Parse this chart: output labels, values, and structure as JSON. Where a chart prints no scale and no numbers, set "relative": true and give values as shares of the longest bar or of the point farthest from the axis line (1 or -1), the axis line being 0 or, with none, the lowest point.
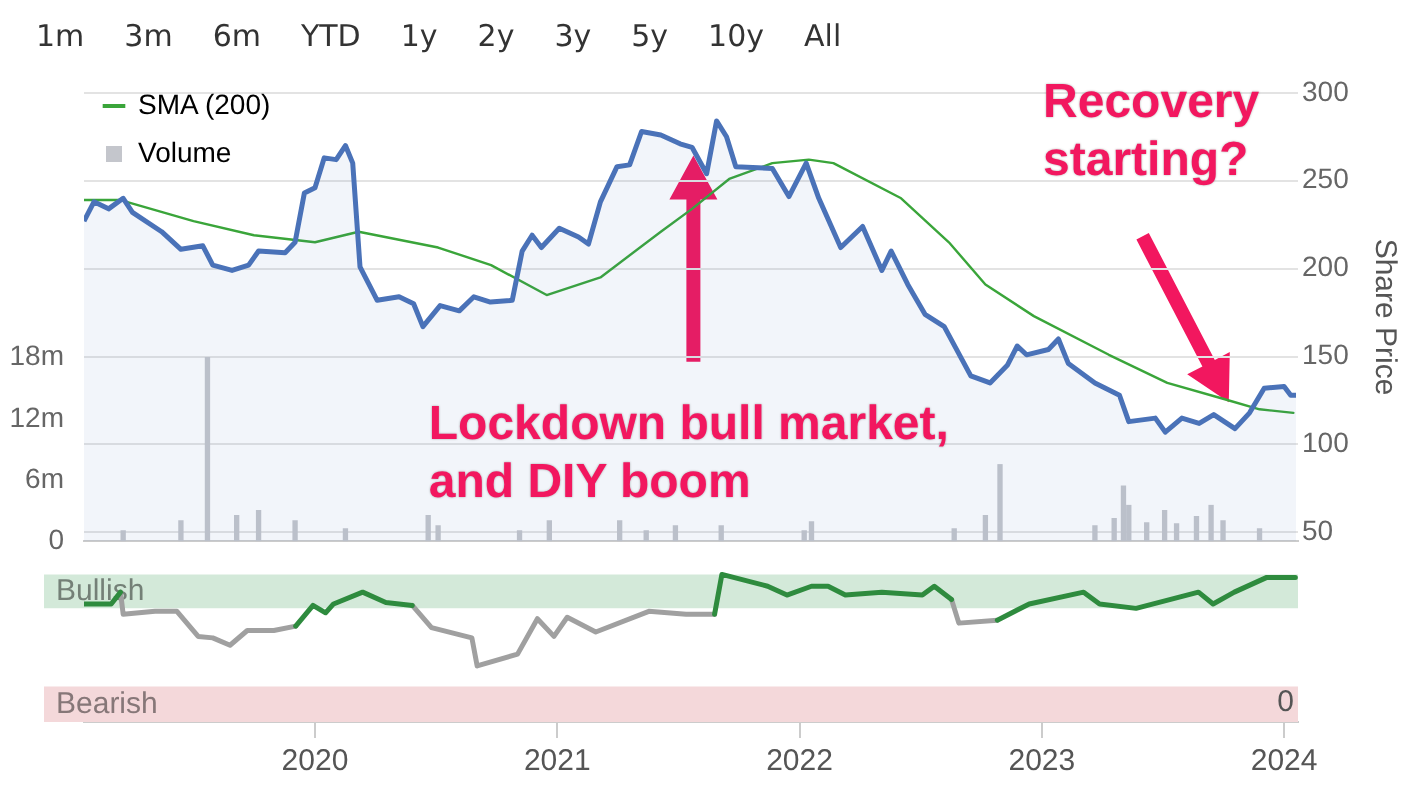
{
  "chart_data": [
    {
      "type": "other",
      "annotations": [
        "1m",
        "3m",
        "6m",
        "YTD",
        "1y",
        "2y",
        "3y",
        "5y",
        "10y",
        "All"
      ]
    },
    {
      "type": "line",
      "ylabel": "Share Price",
      "xlim": [
        "2019-01-18",
        "2024-01-22"
      ],
      "xticks": [
        "2020",
        "2021",
        "2022",
        "2023",
        "2024"
      ],
      "ylim": [
        45,
        300
      ],
      "yticks": [
        50,
        100,
        150,
        200,
        250,
        300
      ],
      "y2lim": [
        0,
        44
      ],
      "y2ticks": [
        0,
        {
          "value": 6,
          "label": "6m"
        },
        {
          "value": 12,
          "label": "12m"
        },
        {
          "value": 18,
          "label": "18m"
        }
      ],
      "grid": "y",
      "legend": "top left",
      "tick_labels": "y",
      "annotations": [
        "Lockdown bull market,\nand DIY boom",
        "Recovery\nstarting?"
      ],
      "series": [
        {
          "type": "area",
          "color": "#4a72b8",
          "x": [
            "2019-01-18",
            "2019-02-02",
            "2019-02-24",
            "2019-03-18",
            "2019-04-01",
            "2019-05-15",
            "2019-06-13",
            "2019-07-16",
            "2019-07-31",
            "2019-08-29",
            "2019-09-23",
            "2019-10-08",
            "2019-11-17",
            "2019-12-02",
            "2019-12-16",
            "2020-01-01",
            "2020-01-15",
            "2020-02-02",
            "2020-02-16",
            "2020-02-27",
            "2020-03-09",
            "2020-04-04",
            "2020-05-07",
            "2020-05-29",
            "2020-06-12",
            "2020-07-08",
            "2020-08-06",
            "2020-08-28",
            "2020-09-22",
            "2020-10-25",
            "2020-11-09",
            "2020-11-24",
            "2020-12-08",
            "2021-01-04",
            "2021-02-02",
            "2021-02-17",
            "2021-03-07",
            "2021-04-01",
            "2021-04-20",
            "2021-05-08",
            "2021-06-06",
            "2021-07-05",
            "2021-07-23",
            "2021-08-14",
            "2021-08-29",
            "2021-09-13",
            "2021-09-27",
            "2021-11-21",
            "2021-12-16",
            "2022-01-11",
            "2022-01-30",
            "2022-03-04",
            "2022-04-06",
            "2022-05-05",
            "2022-05-19",
            "2022-06-13",
            "2022-07-09",
            "2022-08-07",
            "2022-09-16",
            "2022-10-15",
            "2022-11-10",
            "2022-11-25",
            "2022-12-09",
            "2023-01-11",
            "2023-01-26",
            "2023-02-10",
            "2023-03-22",
            "2023-04-28",
            "2023-05-12",
            "2023-06-21",
            "2023-07-06",
            "2023-07-31",
            "2023-08-26",
            "2023-09-17",
            "2023-10-19",
            "2023-11-10",
            "2023-12-02",
            "2024-01-01",
            "2024-01-11",
            "2024-01-19"
          ],
          "values": [
            227,
            238,
            234,
            240,
            232,
            221,
            211,
            213,
            202,
            199,
            202,
            210,
            209,
            215,
            243,
            246,
            263,
            262,
            270,
            260,
            201,
            182,
            184,
            180,
            167,
            179,
            176,
            184,
            181,
            182,
            210,
            219,
            212,
            223,
            218,
            214,
            238,
            258,
            259,
            278,
            276,
            271,
            269,
            254,
            284,
            275,
            258,
            257,
            241,
            260,
            240,
            212,
            224,
            199,
            210,
            191,
            174,
            167,
            139,
            135,
            145,
            156,
            151,
            154,
            160,
            146,
            135,
            128,
            113,
            115,
            107,
            115,
            112,
            117,
            109,
            118,
            132,
            133,
            128,
            128
          ]
        },
        {
          "type": "line",
          "name": "SMA (200)",
          "color": "#3aa53a",
          "x": [
            "2019-01-18",
            "2019-03-14",
            "2019-07-02",
            "2019-10-01",
            "2020-01-01",
            "2020-03-07",
            "2020-07-05",
            "2020-09-23",
            "2020-12-16",
            "2021-03-07",
            "2021-06-06",
            "2021-07-23",
            "2021-09-17",
            "2021-11-21",
            "2022-01-15",
            "2022-02-21",
            "2022-06-03",
            "2022-08-14",
            "2022-10-08",
            "2022-12-20",
            "2023-04-12",
            "2023-07-09",
            "2023-10-01",
            "2023-11-25",
            "2024-01-15"
          ],
          "values": [
            239,
            239,
            227,
            219,
            215,
            221,
            212,
            202,
            185,
            195,
            221,
            234,
            251,
            260,
            262,
            260,
            240,
            215,
            191,
            173,
            151,
            135,
            126,
            120,
            118
          ]
        },
        {
          "type": "bar",
          "name": "Volume",
          "axis": "y2",
          "color": "#c4c6cc",
          "x": [
            "2019-03-18",
            "2019-06-13",
            "2019-07-23",
            "2019-09-05",
            "2019-10-08",
            "2019-12-02",
            "2020-02-16",
            "2020-06-20",
            "2020-07-05",
            "2020-11-05",
            "2020-12-20",
            "2021-04-05",
            "2021-05-15",
            "2021-06-28",
            "2021-09-05",
            "2022-01-08",
            "2022-01-19",
            "2022-08-22",
            "2022-10-08",
            "2022-10-30",
            "2023-03-22",
            "2023-04-20",
            "2023-05-04",
            "2023-05-12",
            "2023-06-08",
            "2023-07-05",
            "2023-07-23",
            "2023-08-22",
            "2023-09-13",
            "2023-10-01",
            "2023-11-25"
          ],
          "values": [
            1.0,
            2.0,
            18,
            2.5,
            3.0,
            2.0,
            1.2,
            2.5,
            1.5,
            1.0,
            2.0,
            2.0,
            1.0,
            1.5,
            1.5,
            1.0,
            1.9,
            1.2,
            2.5,
            7.5,
            1.5,
            2.2,
            5.4,
            3.5,
            1.8,
            3.0,
            1.7,
            2.4,
            3.5,
            2.0,
            1.2
          ]
        }
      ]
    },
    {
      "type": "line",
      "relative": true,
      "xlim": [
        "2019-01-18",
        "2024-01-22"
      ],
      "xticks": [
        "2020",
        "2021",
        "2022",
        "2023",
        "2024"
      ],
      "tick_labels": "x",
      "bands": [
        {
          "axis": "y",
          "from": 0.77,
          "to": 1,
          "label": "Bullish",
          "color": "#d3e9d9"
        },
        {
          "axis": "y",
          "from": 0,
          "to": 0.24,
          "label": "Bearish",
          "color": "#f4d8da"
        }
      ],
      "annotations": [
        "0"
      ],
      "series": [
        {
          "color": "#2e8b3e",
          "x": [
            "2019-01-18",
            "2019-02-28",
            "2019-03-14",
            "2019-03-18",
            "2019-05-05",
            "2019-06-07",
            "2019-07-09",
            "2019-07-31",
            "2019-08-26",
            "2019-09-21",
            "2019-10-31",
            "2019-12-03",
            "2019-12-29",
            "2020-01-17",
            "2020-01-29",
            "2020-03-13",
            "2020-04-17",
            "2020-05-27",
            "2020-06-25",
            "2020-08-25",
            "2020-09-02",
            "2020-11-02",
            "2020-12-02",
            "2020-12-27",
            "2021-01-16",
            "2021-02-28",
            "2021-05-19",
            "2021-07-14",
            "2021-08-26",
            "2021-09-06",
            "2021-11-14",
            "2021-12-13",
            "2022-01-19",
            "2022-02-13",
            "2022-03-11",
            "2022-05-05",
            "2022-07-05",
            "2022-07-23",
            "2022-08-18",
            "2022-08-29",
            "2022-10-26",
            "2022-12-13",
            "2023-03-05",
            "2023-03-29",
            "2023-05-23",
            "2023-08-25",
            "2023-09-16",
            "2023-10-18",
            "2023-12-06",
            "2024-01-18"
          ],
          "values": [
            0.8,
            0.8,
            0.88,
            null,
            null,
            null,
            null,
            null,
            null,
            null,
            null,
            0.65,
            0.79,
            0.74,
            0.8,
            0.88,
            0.81,
            0.79,
            null,
            null,
            null,
            null,
            null,
            null,
            null,
            null,
            null,
            null,
            0.73,
            1,
            0.92,
            0.86,
            0.92,
            0.92,
            0.86,
            0.88,
            0.86,
            0.92,
            0.83,
            null,
            0.69,
            0.8,
            0.88,
            0.8,
            0.77,
            0.88,
            0.8,
            0.88,
            0.98,
            0.98
          ]
        },
        {
          "color": "#a0a0a0",
          "x": [
            "2019-03-14",
            "2019-03-18",
            "2019-05-05",
            "2019-06-07",
            "2019-07-09",
            "2019-07-31",
            "2019-08-26",
            "2019-09-21",
            "2019-10-31",
            "2019-12-03",
            "2019-12-29",
            "2020-01-17",
            "2020-01-29",
            "2020-03-13",
            "2020-04-17",
            "2020-05-27",
            "2020-06-25",
            "2020-08-25",
            "2020-09-02",
            "2020-11-02",
            "2020-12-02",
            "2020-12-27",
            "2021-01-16",
            "2021-02-28",
            "2021-05-19",
            "2021-07-14",
            "2021-08-26",
            "2021-09-06",
            "2021-11-14",
            "2021-12-13",
            "2022-01-19",
            "2022-02-13",
            "2022-03-11",
            "2022-05-05",
            "2022-07-05",
            "2022-07-23",
            "2022-08-18",
            "2022-08-29",
            "2022-10-26"
          ],
          "values": [
            0.88,
            0.73,
            0.75,
            0.75,
            0.58,
            0.57,
            0.52,
            0.62,
            0.62,
            0.65,
            null,
            null,
            null,
            null,
            null,
            0.79,
            0.64,
            0.57,
            0.38,
            0.46,
            0.7,
            0.58,
            0.71,
            0.61,
            0.75,
            0.73,
            0.73,
            null,
            null,
            null,
            null,
            null,
            null,
            null,
            null,
            null,
            0.83,
            0.67,
            0.69
          ]
        }
      ]
    }
  ]
}
